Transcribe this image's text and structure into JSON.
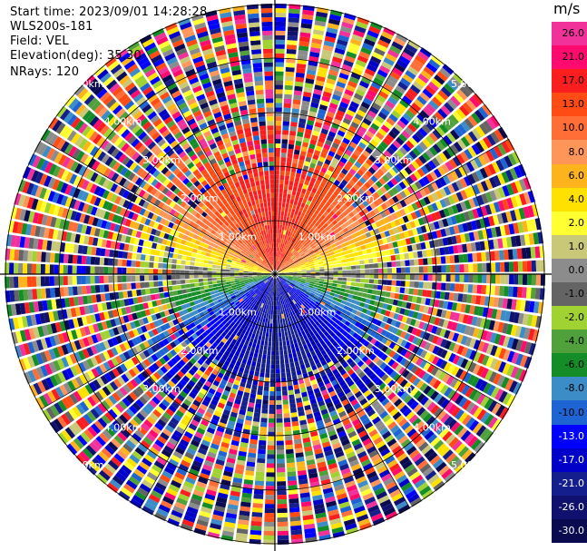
{
  "header": {
    "start_time": "Start time: 2023/09/01 14:28:28",
    "site": "WLS200s-181",
    "field": "Field: VEL",
    "elevation": "Elevation(deg): 35.30",
    "nrays": "NRays: 120"
  },
  "colorbar": {
    "unit": "m/s",
    "levels": [
      {
        "label": "26.0",
        "color": "#f0329a"
      },
      {
        "label": "21.0",
        "color": "#ff0a6e"
      },
      {
        "label": "17.0",
        "color": "#fa1e1e"
      },
      {
        "label": "13.0",
        "color": "#ff4b14"
      },
      {
        "label": "10.0",
        "color": "#ff6e37"
      },
      {
        "label": "8.0",
        "color": "#ff9659"
      },
      {
        "label": "6.0",
        "color": "#fdb31b"
      },
      {
        "label": "4.0",
        "color": "#ffe100"
      },
      {
        "label": "2.0",
        "color": "#ffff32"
      },
      {
        "label": "1.0",
        "color": "#c8c878"
      },
      {
        "label": "0.0",
        "color": "#8c8c8c"
      },
      {
        "label": "-1.0",
        "color": "#646464"
      },
      {
        "label": "-2.0",
        "color": "#a0d232"
      },
      {
        "label": "-4.0",
        "color": "#50a03c"
      },
      {
        "label": "-6.0",
        "color": "#148c28"
      },
      {
        "label": "-8.0",
        "color": "#3c8cc8"
      },
      {
        "label": "-10.0",
        "color": "#1e64d2"
      },
      {
        "label": "-13.0",
        "color": "#0000ff"
      },
      {
        "label": "-17.0",
        "color": "#0000c8"
      },
      {
        "label": "-21.0",
        "color": "#141e8c"
      },
      {
        "label": "-26.0",
        "color": "#10106e"
      },
      {
        "label": "-30.0",
        "color": "#0a0a50"
      }
    ]
  },
  "range_rings": [
    {
      "label": "1.00km"
    },
    {
      "label": "2.00km"
    },
    {
      "label": "3.00km"
    },
    {
      "label": "4.00km"
    },
    {
      "label": "5.00km"
    }
  ],
  "scan": {
    "n_rays": 120,
    "n_gates": 60
  }
}
